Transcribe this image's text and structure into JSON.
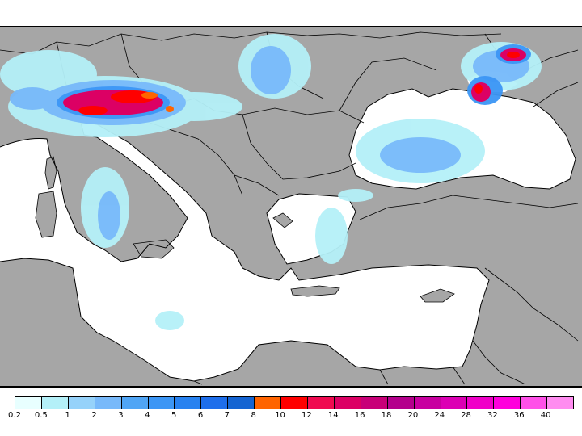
{
  "legend": {
    "colors": [
      "#e8ffff",
      "#b4f0f8",
      "#96d2fa",
      "#78b9fa",
      "#50a5f5",
      "#3c96f5",
      "#2882f0",
      "#1e6eeb",
      "#1464d2",
      "#ff6400",
      "#ff0000",
      "#f00a50",
      "#dc0064",
      "#c80078",
      "#b4008c",
      "#c800a0",
      "#dc00b4",
      "#f000c8",
      "#ff00dc",
      "#ff50e8",
      "#ff8cf0"
    ],
    "tick_labels": [
      "0.2",
      "0.5",
      "1",
      "2",
      "3",
      "4",
      "5",
      "6",
      "7",
      "8",
      "10",
      "12",
      "14",
      "16",
      "18",
      "20",
      "24",
      "28",
      "32",
      "36",
      "40"
    ]
  },
  "map": {
    "land_color": "#a6a6a6",
    "sea_color": "#ffffff",
    "border_color": "#000000"
  }
}
